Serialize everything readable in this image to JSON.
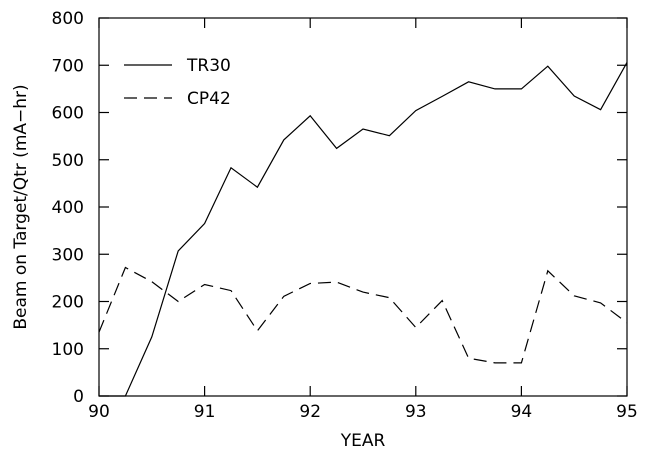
{
  "chart_data": {
    "type": "line",
    "title": "",
    "xlabel": "YEAR",
    "ylabel": "Beam on Target/Qtr (mA−hr)",
    "xlim": [
      90,
      95
    ],
    "ylim": [
      0,
      800
    ],
    "xticks": [
      90,
      91,
      92,
      93,
      94,
      95
    ],
    "xtick_labels": [
      "90",
      "91",
      "92",
      "93",
      "94",
      "95"
    ],
    "yticks": [
      0,
      100,
      200,
      300,
      400,
      500,
      600,
      700,
      800
    ],
    "ytick_labels": [
      "0",
      "100",
      "200",
      "300",
      "400",
      "500",
      "600",
      "700",
      "800"
    ],
    "grid": false,
    "legend_position": "top-left",
    "x": [
      90.0,
      90.25,
      90.5,
      90.75,
      91.0,
      91.25,
      91.5,
      91.75,
      92.0,
      92.25,
      92.5,
      92.75,
      93.0,
      93.25,
      93.5,
      93.75,
      94.0,
      94.25,
      94.5,
      94.75,
      95.0
    ],
    "series": [
      {
        "name": "TR30",
        "style": "solid",
        "color": "#000000",
        "values": [
          0,
          0,
          125,
          307,
          365,
          483,
          442,
          542,
          593,
          524,
          565,
          551,
          604,
          634,
          665,
          650,
          650,
          698,
          635,
          606,
          706
        ]
      },
      {
        "name": "CP42",
        "style": "dashed",
        "color": "#000000",
        "values": [
          135,
          272,
          242,
          200,
          236,
          223,
          138,
          211,
          238,
          241,
          220,
          208,
          145,
          202,
          80,
          70,
          70,
          265,
          212,
          197,
          155
        ]
      }
    ]
  }
}
